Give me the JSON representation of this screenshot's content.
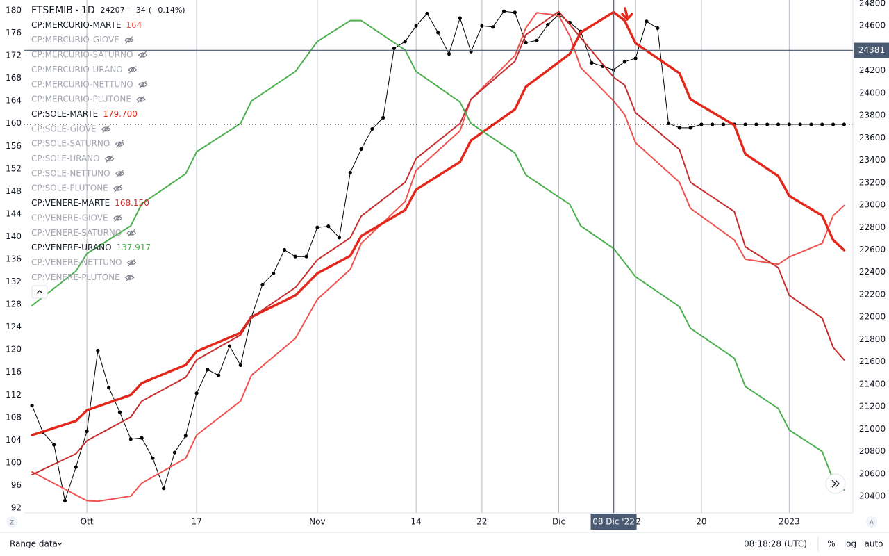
{
  "chart_data": {
    "type": "line",
    "interval": "1D",
    "last_value": 24207,
    "change": {
      "value": -34,
      "label": "−34"
    },
    "change_pct": {
      "value": -0.14,
      "label": "(−0.14%)"
    },
    "xlim": [
      -0.7,
      74.8
    ],
    "xticks": [
      {
        "value": 5,
        "label": "Ott"
      },
      {
        "value": 15,
        "label": "17"
      },
      {
        "value": 26,
        "label": "Nov"
      },
      {
        "value": 35,
        "label": "14"
      },
      {
        "value": 41,
        "label": "22"
      },
      {
        "value": 48,
        "label": "Dic"
      },
      {
        "value": 55,
        "label": "12"
      },
      {
        "value": 61,
        "label": "20"
      },
      {
        "value": 69,
        "label": "2023"
      }
    ],
    "ylim": [
      91.14,
      181.84
    ],
    "yticks": [
      92,
      96,
      100,
      104,
      108,
      112,
      116,
      120,
      124,
      128,
      132,
      136,
      140,
      144,
      148,
      152,
      156,
      160,
      164,
      168,
      172,
      176,
      180
    ],
    "y2lim": [
      20251,
      24831
    ],
    "y2ticks": [
      20400,
      20600,
      20800,
      21000,
      21200,
      21400,
      21600,
      21800,
      22000,
      22200,
      22400,
      22600,
      22800,
      23000,
      23200,
      23400,
      23600,
      23800,
      24000,
      24200,
      24400,
      24600,
      24800
    ],
    "grid": "vertical",
    "crosshair": {
      "x": 53,
      "label": "08 Dic '22",
      "y2": 24381
    },
    "series": [
      {
        "name": "FTSEMIB",
        "color": "#000000",
        "axis": "y2",
        "width": 1,
        "markers": true,
        "x": [
          0,
          1,
          2,
          3,
          4,
          5,
          6,
          7,
          8,
          9,
          10,
          11,
          12,
          13,
          14,
          15,
          16,
          17,
          18,
          19,
          20,
          21,
          22,
          23,
          24,
          25,
          26,
          27,
          28,
          29,
          30,
          31,
          32,
          33,
          34,
          35,
          36,
          37,
          38,
          39,
          40,
          41,
          42,
          43,
          44,
          45,
          46,
          47,
          48,
          49,
          50,
          51,
          52,
          53,
          54,
          55,
          56,
          57,
          58,
          59,
          60,
          61,
          62,
          63,
          64,
          65,
          66,
          67,
          68,
          69,
          70,
          71,
          72,
          73,
          74
        ],
        "values": [
          21210,
          20970,
          20860,
          20360,
          20660,
          20980,
          21700,
          21370,
          21150,
          20910,
          20920,
          20740,
          20470,
          20790,
          20940,
          21320,
          21530,
          21480,
          21740,
          21570,
          22000,
          22290,
          22390,
          22600,
          22540,
          22540,
          22800,
          22810,
          22710,
          23290,
          23500,
          23680,
          23780,
          24400,
          24460,
          24600,
          24710,
          24540,
          24350,
          24670,
          24370,
          24600,
          24590,
          24730,
          24720,
          24450,
          24470,
          24610,
          24700,
          24630,
          24550,
          24270,
          24240,
          24207,
          24280,
          24310,
          24640,
          24580,
          23730,
          23690,
          23690,
          23720,
          23720,
          23720,
          23720,
          23720,
          23720,
          23720,
          23720,
          23720,
          23720,
          23720,
          23720,
          23720,
          23720
        ]
      },
      {
        "name": "CP:MERCURIO-MARTE",
        "color": "#ef5350",
        "width": 2,
        "crosshair_value": 164,
        "x": [
          0,
          4,
          5,
          6,
          9,
          10,
          14,
          15,
          19,
          20,
          24,
          26,
          29,
          30,
          34,
          35,
          39,
          40,
          44,
          45,
          46,
          48,
          49,
          50,
          53,
          54,
          55,
          59,
          60,
          64,
          65,
          68,
          69,
          72,
          73,
          74
        ],
        "values": [
          98.4,
          94.3,
          93.3,
          93.2,
          94.1,
          96.4,
          100.8,
          104.9,
          110.9,
          115.5,
          122.0,
          128.9,
          134.2,
          138.8,
          146.2,
          151.7,
          158.7,
          164.3,
          172.0,
          176.9,
          179.6,
          179.1,
          175.5,
          169.9,
          164.0,
          161.6,
          156.6,
          149.6,
          145.0,
          139.4,
          136.0,
          135.1,
          136.4,
          138.8,
          143.7,
          145.5
        ]
      },
      {
        "name": "CP:MERCURIO-GIOVE",
        "hidden": true
      },
      {
        "name": "CP:MERCURIO-SATURNO",
        "hidden": true
      },
      {
        "name": "CP:MERCURIO-URANO",
        "hidden": true
      },
      {
        "name": "CP:MERCURIO-NETTUNO",
        "hidden": true
      },
      {
        "name": "CP:MERCURIO-PLUTONE",
        "hidden": true
      },
      {
        "name": "CP:SOLE-MARTE",
        "color": "#e3281b",
        "width": 3.5,
        "crosshair_value": {
          "value": 179.7,
          "label": "179.700"
        },
        "x": [
          0,
          4,
          5,
          9,
          10,
          14,
          15,
          19,
          20,
          24,
          26,
          29,
          30,
          34,
          35,
          39,
          40,
          44,
          45,
          49,
          50,
          53,
          54,
          55,
          59,
          60,
          64,
          65,
          68,
          69,
          72,
          73,
          74
        ],
        "values": [
          104.9,
          107.4,
          109.3,
          112.0,
          114.1,
          117.3,
          119.7,
          123.0,
          125.8,
          129.6,
          133.5,
          136.6,
          140.1,
          144.7,
          148.3,
          153.2,
          157.0,
          162.5,
          166.5,
          172.3,
          176.1,
          179.7,
          178.2,
          174.2,
          168.9,
          164.3,
          159.7,
          154.6,
          150.7,
          147.2,
          143.7,
          139.4,
          137.6
        ]
      },
      {
        "name": "CP:SOLE-GIOVE",
        "hidden": true
      },
      {
        "name": "CP:SOLE-SATURNO",
        "hidden": true
      },
      {
        "name": "CP:SOLE-URANO",
        "hidden": true
      },
      {
        "name": "CP:SOLE-NETTUNO",
        "hidden": true
      },
      {
        "name": "CP:SOLE-PLUTONE",
        "hidden": true
      },
      {
        "name": "CP:VENERE-MARTE",
        "color": "#c62d2d",
        "width": 2,
        "crosshair_value": {
          "value": 168.15,
          "label": "168.150"
        },
        "x": [
          0,
          4,
          5,
          9,
          10,
          14,
          15,
          19,
          20,
          24,
          26,
          29,
          30,
          34,
          35,
          39,
          40,
          44,
          45,
          48,
          49,
          53,
          54,
          55,
          59,
          60,
          64,
          65,
          68,
          69,
          72,
          73,
          74
        ],
        "values": [
          97.9,
          101.6,
          103.9,
          108.1,
          110.9,
          115.1,
          118.2,
          122.6,
          125.7,
          131.0,
          135.9,
          139.8,
          143.6,
          149.6,
          153.8,
          160.0,
          164.3,
          171.0,
          175.7,
          179.8,
          177.5,
          168.2,
          166.8,
          161.9,
          155.4,
          149.6,
          144.4,
          138.2,
          134.5,
          129.6,
          125.6,
          120.4,
          118.2
        ]
      },
      {
        "name": "CP:VENERE-GIOVE",
        "hidden": true
      },
      {
        "name": "CP:VENERE-SATURNO",
        "hidden": true
      },
      {
        "name": "CP:VENERE-URANO",
        "color": "#4caf50",
        "width": 2,
        "crosshair_value": 137.917,
        "x": [
          0,
          4,
          5,
          9,
          10,
          14,
          15,
          19,
          20,
          24,
          26,
          29,
          30,
          34,
          35,
          39,
          40,
          44,
          45,
          49,
          50,
          53,
          55,
          59,
          60,
          64,
          65,
          68,
          69,
          72,
          73,
          74
        ],
        "values": [
          127.8,
          133.9,
          137.0,
          141.9,
          145.8,
          151.1,
          155.0,
          160.0,
          164.0,
          169.2,
          174.5,
          178.2,
          178.2,
          173.0,
          169.2,
          163.8,
          160.0,
          154.8,
          150.9,
          145.7,
          141.9,
          137.9,
          132.9,
          127.6,
          123.8,
          118.5,
          113.5,
          109.6,
          105.8,
          102.0,
          97.0,
          95.2
        ]
      },
      {
        "name": "CP:VENERE-NETTUNO",
        "hidden": true
      },
      {
        "name": "CP:VENERE-PLUTONE",
        "hidden": true
      }
    ]
  },
  "ui": {
    "corner_left": "Z",
    "corner_right": "A",
    "range": "Range data",
    "time": "08:18:28 (UTC)",
    "buttons": [
      "%",
      "log",
      "auto"
    ]
  }
}
